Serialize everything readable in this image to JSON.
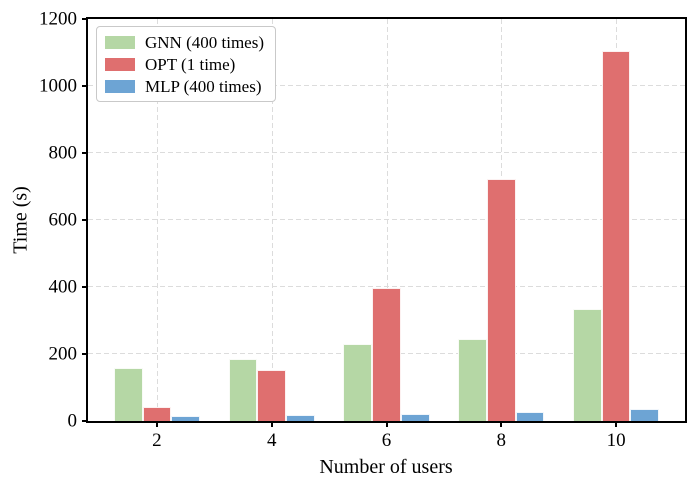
{
  "chart_data": {
    "type": "bar",
    "title": "",
    "xlabel": "Number of users",
    "ylabel": "Time (s)",
    "categories": [
      "2",
      "4",
      "6",
      "8",
      "10"
    ],
    "x": [
      2,
      4,
      6,
      8,
      10
    ],
    "series": [
      {
        "name": "GNN (400 times)",
        "color": "#b5d7a5",
        "values": [
          158,
          186,
          230,
          245,
          335
        ]
      },
      {
        "name": "OPT (1 time)",
        "color": "#df6f6f",
        "values": [
          42,
          153,
          398,
          723,
          1104
        ]
      },
      {
        "name": "MLP (400 times)",
        "color": "#6da4d4",
        "values": [
          15,
          19,
          22,
          27,
          35
        ]
      }
    ],
    "ylim": [
      0,
      1200
    ],
    "yticks": [
      0,
      200,
      400,
      600,
      800,
      1000,
      1200
    ],
    "xlim": [
      0.8,
      11.2
    ],
    "bar_width": 0.5,
    "grid": true,
    "grid_color": "#dcdcdc",
    "spine_color": "#000000",
    "legend_position": "upper left"
  }
}
